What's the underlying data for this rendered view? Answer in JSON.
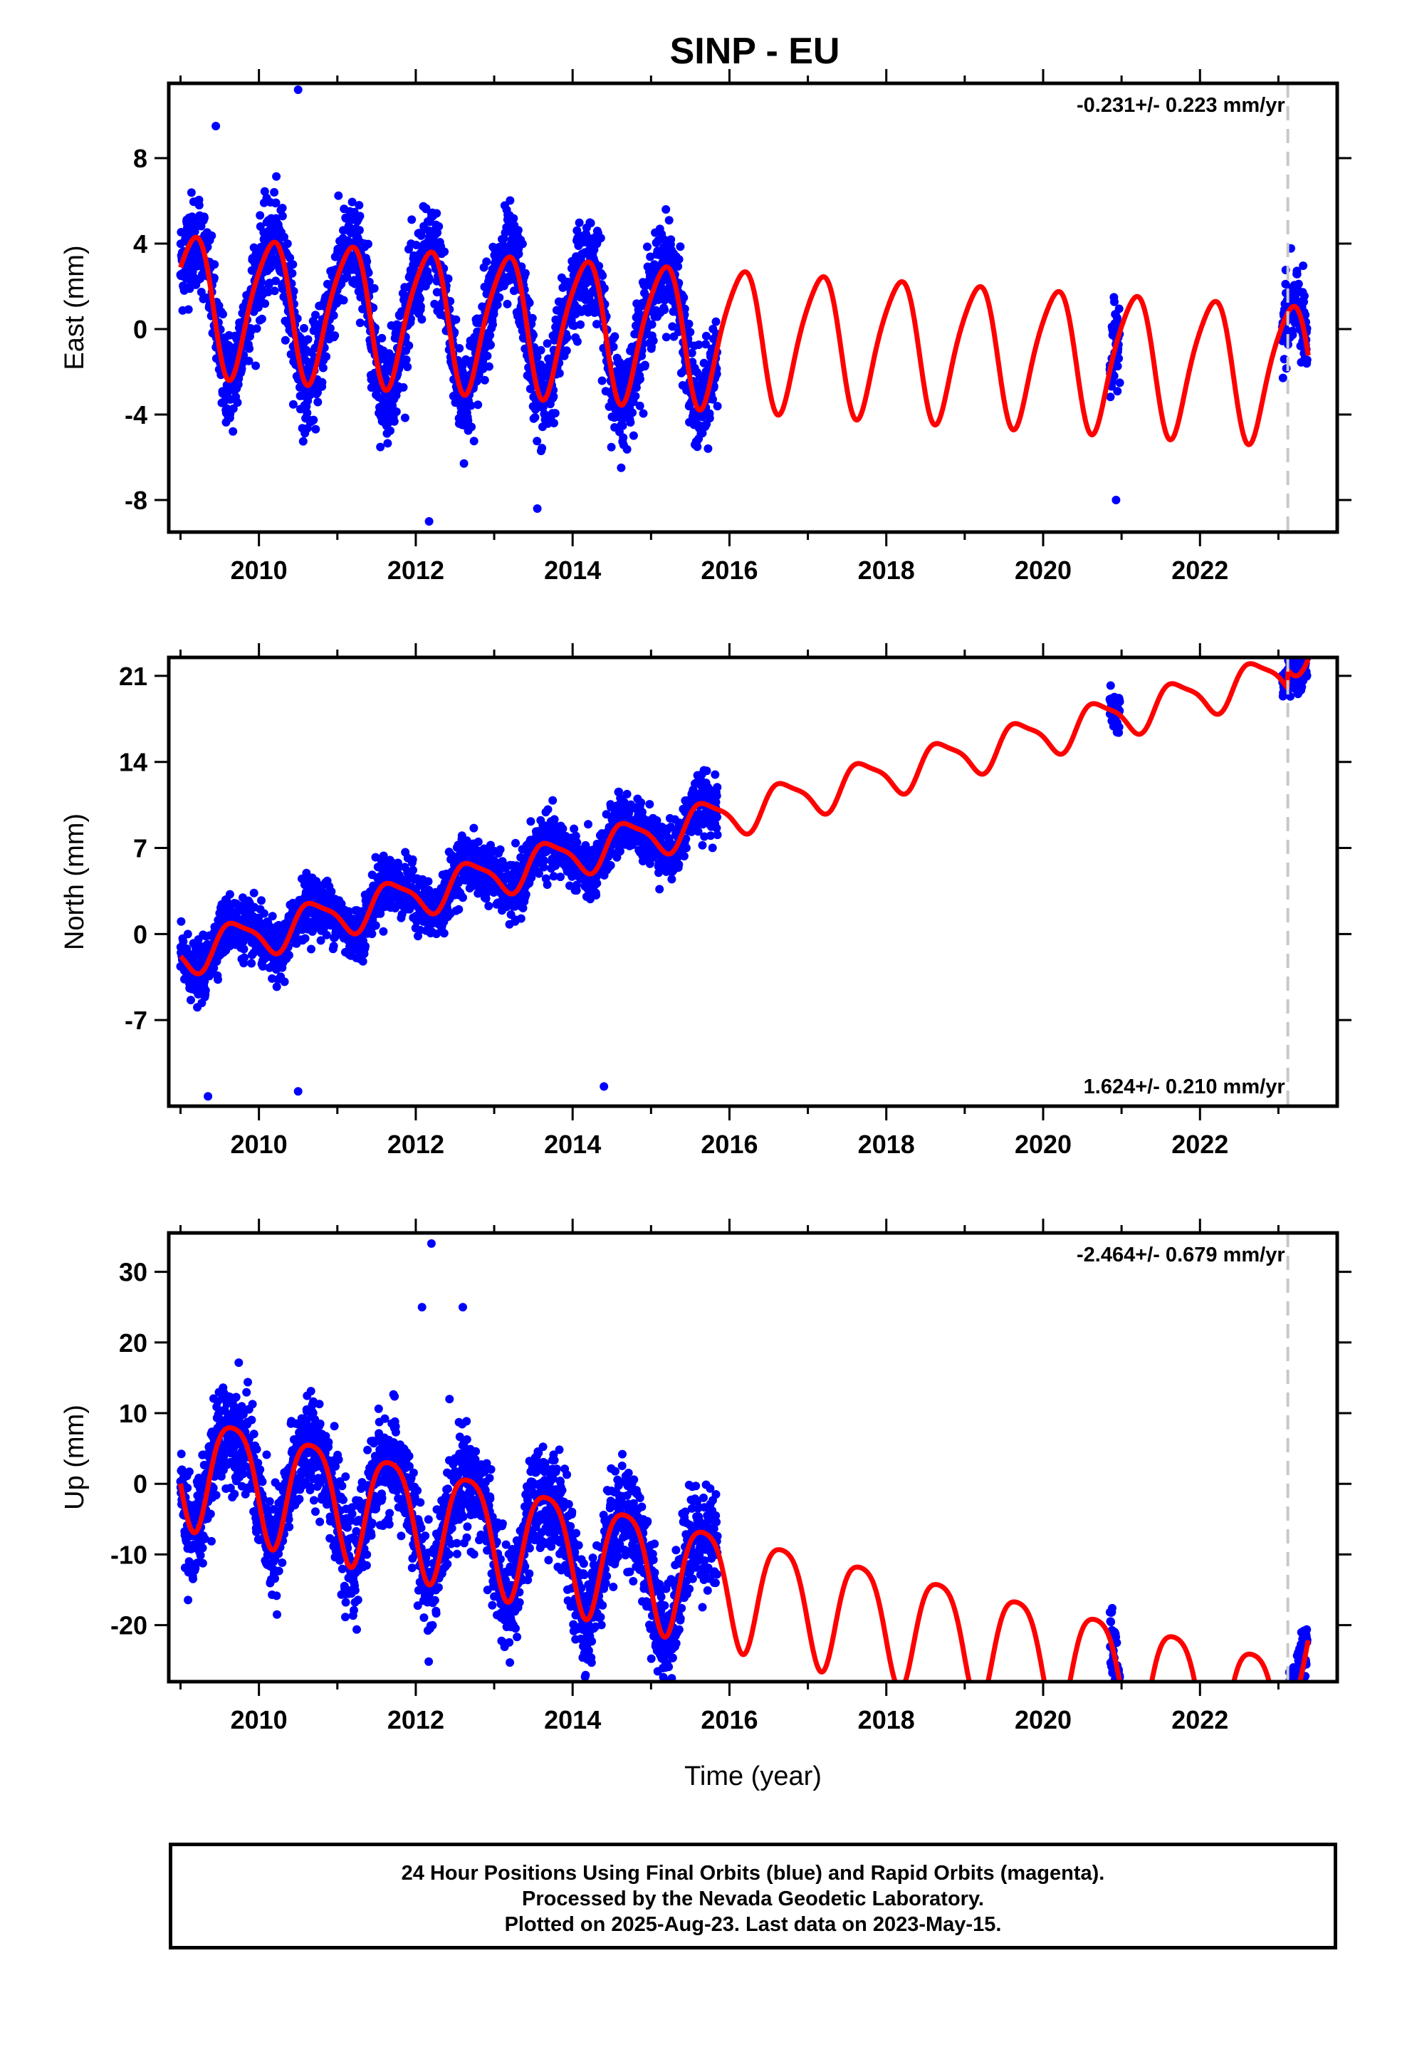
{
  "title": "SINP - EU",
  "footer": {
    "line1": "24 Hour Positions Using Final Orbits (blue) and Rapid Orbits (magenta).",
    "line2": "Processed by the Nevada Geodetic Laboratory.",
    "line3": "Plotted on 2025-Aug-23. Last data on 2023-May-15."
  },
  "colors": {
    "data": "#0000ff",
    "model": "#ff0000",
    "break": "#c8c8c8"
  },
  "chart_data": [
    {
      "type": "scatter",
      "ylabel": "East (mm)",
      "xlabel": "",
      "rate_label": "-0.231+/- 0.223 mm/yr",
      "xlim": [
        2008.85,
        2023.75
      ],
      "ylim": [
        -9.5,
        11.5
      ],
      "yticks": [
        -8,
        -4,
        0,
        4,
        8
      ],
      "xticks": [
        2010,
        2012,
        2014,
        2016,
        2018,
        2020,
        2022
      ],
      "break_year": 2023.12,
      "model": {
        "trend": -0.231,
        "offset": 1.3,
        "amp_annual": 3.2,
        "phase_annual": 0.1,
        "amp_semi": 0.5,
        "phase_semi": 0.3,
        "amp_decay": 0.012,
        "step_break": 0.0
      },
      "data_segments": [
        {
          "start": 2009.0,
          "end": 2015.85,
          "scatter": 1.4
        },
        {
          "start": 2020.85,
          "end": 2020.98,
          "scatter": 1.2
        },
        {
          "start": 2023.05,
          "end": 2023.37,
          "scatter": 1.2
        }
      ],
      "outliers": [
        [
          2010.5,
          11.2
        ],
        [
          2012.17,
          -9.0
        ],
        [
          2013.55,
          -8.4
        ],
        [
          2009.45,
          9.5
        ],
        [
          2020.93,
          -8.0
        ]
      ]
    },
    {
      "type": "scatter",
      "ylabel": "North (mm)",
      "xlabel": "",
      "rate_label": "1.624+/- 0.210 mm/yr",
      "xlim": [
        2008.85,
        2023.75
      ],
      "ylim": [
        -14,
        22.5
      ],
      "yticks": [
        -7,
        0,
        7,
        14,
        21
      ],
      "xticks": [
        2010,
        2012,
        2014,
        2016,
        2018,
        2020,
        2022
      ],
      "break_year": 2023.12,
      "model": {
        "trend": 1.624,
        "offset": -1.7,
        "amp_annual": 1.6,
        "phase_annual": 0.55,
        "amp_semi": 0.4,
        "phase_semi": 0.1,
        "amp_decay": 0,
        "step_break": 1.5
      },
      "data_segments": [
        {
          "start": 2009.0,
          "end": 2015.85,
          "scatter": 1.4
        },
        {
          "start": 2020.85,
          "end": 2020.98,
          "scatter": 1.0
        },
        {
          "start": 2023.05,
          "end": 2023.37,
          "scatter": 1.0
        }
      ],
      "outliers": [
        [
          2009.35,
          -13.2
        ],
        [
          2010.5,
          -12.8
        ],
        [
          2014.4,
          -12.4
        ]
      ]
    },
    {
      "type": "scatter",
      "ylabel": "Up (mm)",
      "xlabel": "Time (year)",
      "rate_label": "-2.464+/- 0.679 mm/yr",
      "xlim": [
        2008.85,
        2023.75
      ],
      "ylim": [
        -28,
        35.5
      ],
      "yticks": [
        -20,
        -10,
        0,
        10,
        20,
        30
      ],
      "xticks": [
        2010,
        2012,
        2014,
        2016,
        2018,
        2020,
        2022
      ],
      "break_year": 2023.12,
      "model": {
        "trend": -2.464,
        "offset": 3.0,
        "amp_annual": 8.0,
        "phase_annual": 0.58,
        "amp_semi": 1.5,
        "phase_semi": 0.2,
        "amp_decay": 0,
        "step_break": 11.0
      },
      "data_segments": [
        {
          "start": 2009.0,
          "end": 2015.85,
          "scatter": 4.5
        },
        {
          "start": 2020.85,
          "end": 2020.98,
          "scatter": 3.5
        },
        {
          "start": 2023.05,
          "end": 2023.37,
          "scatter": 4.0
        }
      ],
      "outliers": [
        [
          2012.2,
          34.0
        ],
        [
          2012.08,
          25.0
        ],
        [
          2012.6,
          25.0
        ],
        [
          2010.23,
          -18.5
        ],
        [
          2014.15,
          -24.0
        ]
      ]
    }
  ]
}
